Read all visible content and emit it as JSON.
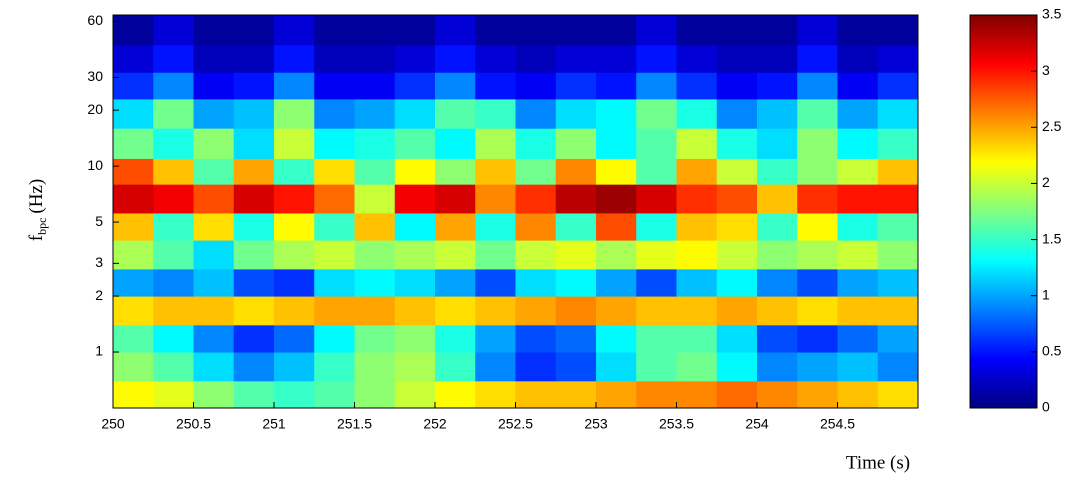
{
  "chart_data": {
    "type": "heatmap",
    "xlabel": "Time (s)",
    "ylabel": {
      "main": "f",
      "sub": "bpc",
      "unit": "(Hz)"
    },
    "x_edges": [
      250,
      250.25,
      250.5,
      250.75,
      251,
      251.25,
      251.5,
      251.75,
      252,
      252.25,
      252.5,
      252.75,
      253,
      253.25,
      253.5,
      253.75,
      254,
      254.25,
      254.5,
      254.75,
      255
    ],
    "y_edges": [
      0.5,
      0.7,
      1,
      1.4,
      2,
      2.8,
      4,
      5.6,
      8,
      11,
      16,
      23,
      32,
      45,
      65
    ],
    "z": [
      [
        2.2,
        2.1,
        1.8,
        1.6,
        1.5,
        1.6,
        1.8,
        2.0,
        2.2,
        2.3,
        2.4,
        2.4,
        2.5,
        2.6,
        2.6,
        2.7,
        2.6,
        2.5,
        2.4,
        2.3
      ],
      [
        1.8,
        1.6,
        1.2,
        0.9,
        1.1,
        1.5,
        1.8,
        1.9,
        1.5,
        0.9,
        0.6,
        0.7,
        1.2,
        1.6,
        1.7,
        1.3,
        0.9,
        1.0,
        1.1,
        0.9
      ],
      [
        1.6,
        1.3,
        0.9,
        0.6,
        0.8,
        1.3,
        1.7,
        1.8,
        1.4,
        1.0,
        0.7,
        0.8,
        1.3,
        1.6,
        1.6,
        1.2,
        0.7,
        0.6,
        0.8,
        1.0
      ],
      [
        2.3,
        2.4,
        2.4,
        2.3,
        2.4,
        2.5,
        2.5,
        2.4,
        2.3,
        2.4,
        2.5,
        2.6,
        2.5,
        2.4,
        2.4,
        2.5,
        2.4,
        2.3,
        2.4,
        2.4
      ],
      [
        1.0,
        0.9,
        1.1,
        0.7,
        0.6,
        1.2,
        1.3,
        1.2,
        1.0,
        0.7,
        1.2,
        1.3,
        1.0,
        0.7,
        1.1,
        1.3,
        0.9,
        0.7,
        1.0,
        1.1
      ],
      [
        1.9,
        1.6,
        1.2,
        1.7,
        1.9,
        2.0,
        1.8,
        1.9,
        2.0,
        1.7,
        2.0,
        2.1,
        1.9,
        2.1,
        2.2,
        2.0,
        1.8,
        1.9,
        2.0,
        1.8
      ],
      [
        2.4,
        1.5,
        2.3,
        1.4,
        2.2,
        1.5,
        2.4,
        1.3,
        2.5,
        1.4,
        2.6,
        1.5,
        2.8,
        1.4,
        2.4,
        2.3,
        1.5,
        2.2,
        1.4,
        1.6
      ],
      [
        3.2,
        3.1,
        2.8,
        3.2,
        3.0,
        2.7,
        2.0,
        3.1,
        3.2,
        2.6,
        2.9,
        3.3,
        3.4,
        3.2,
        2.9,
        2.8,
        2.4,
        2.9,
        3.0,
        3.0
      ],
      [
        2.8,
        2.4,
        1.6,
        2.5,
        1.5,
        2.3,
        1.6,
        2.2,
        1.8,
        2.4,
        1.7,
        2.6,
        2.2,
        1.6,
        2.5,
        2.0,
        1.5,
        1.8,
        2.0,
        2.4
      ],
      [
        1.7,
        1.4,
        1.8,
        1.2,
        2.0,
        1.3,
        1.4,
        1.6,
        1.3,
        1.9,
        1.4,
        1.8,
        1.3,
        1.6,
        2.0,
        1.4,
        1.2,
        1.8,
        1.3,
        1.5
      ],
      [
        1.2,
        1.7,
        1.0,
        1.1,
        1.8,
        0.9,
        1.0,
        1.2,
        1.6,
        1.5,
        0.9,
        1.2,
        1.3,
        1.7,
        1.4,
        0.9,
        1.1,
        1.6,
        1.0,
        1.2
      ],
      [
        0.6,
        0.9,
        0.4,
        0.5,
        0.9,
        0.4,
        0.4,
        0.6,
        0.9,
        0.5,
        0.4,
        0.6,
        0.5,
        0.9,
        0.6,
        0.4,
        0.5,
        0.9,
        0.4,
        0.6
      ],
      [
        0.3,
        0.5,
        0.2,
        0.2,
        0.5,
        0.2,
        0.2,
        0.3,
        0.5,
        0.3,
        0.2,
        0.3,
        0.3,
        0.5,
        0.3,
        0.2,
        0.2,
        0.5,
        0.2,
        0.3
      ],
      [
        0.1,
        0.3,
        0.1,
        0.1,
        0.3,
        0.1,
        0.1,
        0.1,
        0.3,
        0.1,
        0.1,
        0.1,
        0.1,
        0.3,
        0.1,
        0.1,
        0.1,
        0.3,
        0.1,
        0.1
      ]
    ],
    "xlim": [
      250,
      255
    ],
    "xticks": [
      250,
      250.5,
      251,
      251.5,
      252,
      252.5,
      253,
      253.5,
      254,
      254.5
    ],
    "ylim": [
      0.5,
      65
    ],
    "ylog": true,
    "yticks": [
      1,
      2,
      3,
      5,
      10,
      20,
      30,
      60
    ],
    "colormap": "jet",
    "clim": [
      0,
      3.5
    ],
    "cticks": [
      0,
      0.5,
      1,
      1.5,
      2,
      2.5,
      3,
      3.5
    ]
  }
}
